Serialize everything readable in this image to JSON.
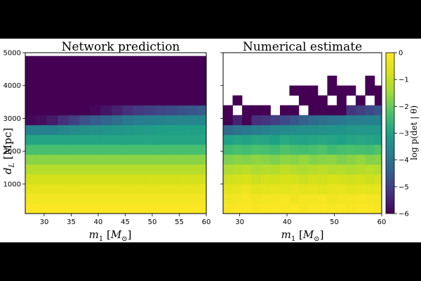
{
  "chart_data": [
    {
      "type": "heatmap",
      "title": "Network prediction",
      "xlabel": "m₁ [M⊙]",
      "ylabel": "d_L [Mpc]",
      "x_ticks": [
        30,
        35,
        40,
        45,
        50,
        55,
        60
      ],
      "y_ticks": [
        1000,
        2000,
        3000,
        4000,
        5000
      ],
      "xlim": [
        26.5,
        60
      ],
      "ylim": [
        100,
        5000
      ],
      "z_range": [
        -6,
        0
      ],
      "colormap": "viridis",
      "grid": false,
      "column_m1": [
        27.5,
        29.5,
        31.5,
        33.5,
        35.5,
        37.5,
        39.5,
        41.5,
        43.5,
        45.5,
        47.5,
        49.5,
        51.5,
        53.5,
        55.5,
        57.5,
        59.5
      ],
      "row_dL": [
        250,
        550,
        850,
        1150,
        1450,
        1750,
        2050,
        2350,
        2650,
        2950,
        3250,
        3550,
        3850,
        4150,
        4450,
        4750
      ],
      "log_p_rows": [
        [
          -0.05,
          -0.05,
          -0.05,
          -0.05,
          -0.05,
          -0.05,
          -0.05,
          -0.05,
          -0.05,
          -0.05,
          -0.05,
          -0.05,
          -0.05,
          -0.05,
          -0.05,
          -0.05,
          -0.05
        ],
        [
          -0.2,
          -0.2,
          -0.2,
          -0.2,
          -0.2,
          -0.2,
          -0.2,
          -0.2,
          -0.2,
          -0.2,
          -0.2,
          -0.2,
          -0.2,
          -0.2,
          -0.2,
          -0.2,
          -0.2
        ],
        [
          -0.45,
          -0.45,
          -0.45,
          -0.45,
          -0.45,
          -0.45,
          -0.45,
          -0.45,
          -0.45,
          -0.45,
          -0.45,
          -0.45,
          -0.45,
          -0.45,
          -0.45,
          -0.45,
          -0.45
        ],
        [
          -0.8,
          -0.8,
          -0.8,
          -0.8,
          -0.8,
          -0.8,
          -0.8,
          -0.8,
          -0.8,
          -0.8,
          -0.8,
          -0.8,
          -0.8,
          -0.8,
          -0.8,
          -0.8,
          -0.8
        ],
        [
          -1.2,
          -1.2,
          -1.2,
          -1.2,
          -1.2,
          -1.2,
          -1.2,
          -1.2,
          -1.2,
          -1.2,
          -1.2,
          -1.2,
          -1.2,
          -1.2,
          -1.2,
          -1.2,
          -1.2
        ],
        [
          -1.7,
          -1.7,
          -1.7,
          -1.7,
          -1.7,
          -1.7,
          -1.7,
          -1.7,
          -1.7,
          -1.7,
          -1.7,
          -1.7,
          -1.7,
          -1.7,
          -1.7,
          -1.7,
          -1.7
        ],
        [
          -2.3,
          -2.3,
          -2.3,
          -2.3,
          -2.3,
          -2.3,
          -2.3,
          -2.3,
          -2.3,
          -2.3,
          -2.3,
          -2.3,
          -2.3,
          -2.3,
          -2.3,
          -2.3,
          -2.3
        ],
        [
          -2.9,
          -2.9,
          -2.9,
          -2.9,
          -2.9,
          -2.9,
          -2.9,
          -2.9,
          -2.9,
          -2.9,
          -2.9,
          -2.9,
          -2.9,
          -2.9,
          -2.9,
          -2.9,
          -2.9
        ],
        [
          -3.7,
          -3.7,
          -3.7,
          -3.6,
          -3.5,
          -3.4,
          -3.35,
          -3.3,
          -3.25,
          -3.2,
          -3.15,
          -3.1,
          -3.05,
          -3.0,
          -3.0,
          -3.0,
          -3.0
        ],
        [
          -5.9,
          -5.8,
          -5.6,
          -5.3,
          -5.0,
          -4.7,
          -4.5,
          -4.3,
          -4.1,
          -3.9,
          -3.8,
          -3.75,
          -3.7,
          -3.65,
          -3.6,
          -3.6,
          -3.6
        ],
        [
          -6,
          -6,
          -6,
          -6,
          -6,
          -6,
          -5.9,
          -5.7,
          -5.5,
          -5.3,
          -5.1,
          -5.0,
          -4.9,
          -4.8,
          -4.7,
          -4.6,
          -4.5
        ],
        [
          -6,
          -6,
          -6,
          -6,
          -6,
          -6,
          -6,
          -6,
          -6,
          -6,
          -6,
          -6,
          -6,
          -6,
          -6,
          -6,
          -6
        ],
        [
          -6,
          -6,
          -6,
          -6,
          -6,
          -6,
          -6,
          -6,
          -6,
          -6,
          -6,
          -6,
          -6,
          -6,
          -6,
          -6,
          -6
        ],
        [
          -6,
          -6,
          -6,
          -6,
          -6,
          -6,
          -6,
          -6,
          -6,
          -6,
          -6,
          -6,
          -6,
          -6,
          -6,
          -6,
          -6
        ],
        [
          -6,
          -6,
          -6,
          -6,
          -6,
          -6,
          -6,
          -6,
          -6,
          -6,
          -6,
          -6,
          -6,
          -6,
          -6,
          -6,
          -6
        ],
        [
          -6,
          -6,
          -6,
          -6,
          -6,
          -6,
          -6,
          -6,
          -6,
          -6,
          -6,
          -6,
          -6,
          -6,
          -6,
          -6,
          -6
        ]
      ]
    },
    {
      "type": "heatmap",
      "title": "Numerical estimate",
      "xlabel": "m₁ [M⊙]",
      "x_ticks": [
        30,
        40,
        50,
        60
      ],
      "xlim": [
        26.5,
        60
      ],
      "ylim": [
        100,
        5000
      ],
      "z_range": [
        -6,
        0
      ],
      "colormap": "viridis",
      "grid": false,
      "column_m1": [
        27.5,
        29.5,
        31.5,
        33.5,
        35.5,
        37.5,
        39.5,
        41.5,
        43.5,
        45.5,
        47.5,
        49.5,
        51.5,
        53.5,
        55.5,
        57.5,
        59.5
      ],
      "row_dL": [
        250,
        550,
        850,
        1150,
        1450,
        1750,
        2050,
        2350,
        2650,
        2950,
        3250,
        3550,
        3850,
        4150,
        4450,
        4750
      ],
      "log_p_rows": [
        [
          -0.1,
          -0.05,
          -0.05,
          -0.1,
          -0.05,
          -0.05,
          -0.1,
          -0.05,
          -0.1,
          -0.05,
          -0.05,
          -0.1,
          -0.05,
          -0.1,
          -0.05,
          -0.05,
          -0.1
        ],
        [
          -0.25,
          -0.2,
          -0.15,
          -0.25,
          -0.2,
          -0.2,
          -0.15,
          -0.25,
          -0.2,
          -0.2,
          -0.15,
          -0.25,
          -0.2,
          -0.2,
          -0.15,
          -0.2,
          -0.2
        ],
        [
          -0.5,
          -0.45,
          -0.35,
          -0.55,
          -0.5,
          -0.45,
          -0.5,
          -0.4,
          -0.5,
          -0.45,
          -0.55,
          -0.45,
          -0.4,
          -0.5,
          -0.45,
          -0.5,
          -0.45
        ],
        [
          -0.85,
          -0.8,
          -0.75,
          -0.9,
          -0.8,
          -0.85,
          -0.75,
          -0.8,
          -0.9,
          -0.8,
          -0.85,
          -0.75,
          -0.8,
          -0.85,
          -0.8,
          -0.9,
          -0.8
        ],
        [
          -1.3,
          -1.2,
          -1.15,
          -1.3,
          -1.2,
          -1.25,
          -1.1,
          -1.2,
          -1.3,
          -1.2,
          -1.15,
          -1.25,
          -1.2,
          -1.3,
          -1.2,
          -1.15,
          -1.25
        ],
        [
          -1.8,
          -1.7,
          -1.75,
          -1.65,
          -1.7,
          -1.8,
          -1.65,
          -1.7,
          -1.6,
          -1.75,
          -1.7,
          -1.65,
          -1.8,
          -1.7,
          -1.6,
          -1.75,
          -1.7
        ],
        [
          -2.4,
          -2.3,
          -2.35,
          -2.25,
          -2.3,
          -2.4,
          -2.2,
          -2.3,
          -2.35,
          -2.3,
          -2.2,
          -2.4,
          -2.3,
          -2.25,
          -2.3,
          -2.35,
          -2.2
        ],
        [
          -3.0,
          -2.9,
          -2.95,
          -2.85,
          -2.9,
          -3.0,
          -2.8,
          -2.9,
          -2.95,
          -2.9,
          -2.85,
          -2.9,
          -3.0,
          -2.9,
          -2.85,
          -2.9,
          -2.95
        ],
        [
          -4.2,
          -4.0,
          -3.9,
          -3.8,
          -3.7,
          -3.6,
          -3.5,
          -3.45,
          -3.4,
          -3.4,
          -3.35,
          -3.3,
          -3.3,
          -3.25,
          -3.2,
          -3.2,
          -3.2
        ],
        [
          -6,
          -5.5,
          -6,
          -5.3,
          -5.2,
          -5.0,
          -4.8,
          -4.6,
          -4.4,
          -4.2,
          -4.1,
          -4.0,
          -3.9,
          -3.8,
          -3.8,
          -3.7,
          -3.7
        ],
        [
          -6,
          null,
          -6,
          -6,
          -6,
          null,
          -6,
          -6,
          null,
          -6,
          -6,
          -6,
          -6,
          -5.2,
          -5.0,
          -4.8,
          -4.6
        ],
        [
          null,
          -6,
          null,
          null,
          null,
          null,
          null,
          null,
          -6,
          -6,
          -6,
          null,
          -6,
          null,
          -6,
          null,
          -6
        ],
        [
          null,
          null,
          null,
          null,
          null,
          null,
          null,
          -6,
          -6,
          -6,
          null,
          -6,
          -6,
          -6,
          null,
          -6,
          -6
        ],
        [
          null,
          null,
          null,
          null,
          null,
          null,
          null,
          null,
          null,
          null,
          null,
          -6,
          null,
          null,
          null,
          -6,
          null
        ],
        [
          null,
          null,
          null,
          null,
          null,
          null,
          null,
          null,
          null,
          null,
          null,
          null,
          null,
          null,
          null,
          null,
          null
        ],
        [
          null,
          null,
          null,
          null,
          null,
          null,
          null,
          null,
          null,
          null,
          null,
          null,
          null,
          null,
          null,
          null,
          null
        ]
      ]
    }
  ],
  "colorbar": {
    "label": "log p(det | θ)",
    "ticks": [
      0,
      -1,
      -2,
      -3,
      -4,
      -5,
      -6
    ],
    "range": [
      -6,
      0
    ],
    "colormap": "viridis"
  }
}
